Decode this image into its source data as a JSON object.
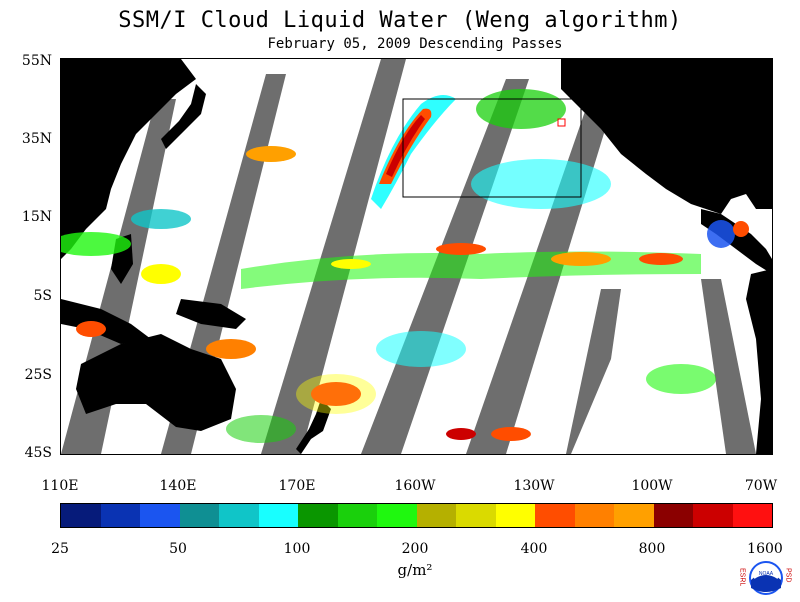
{
  "title": "SSM/I Cloud Liquid Water (Weng algorithm)",
  "subtitle": "February 05, 2009  Descending Passes",
  "lat_labels": [
    "55N",
    "35N",
    "15N",
    "5S",
    "25S",
    "45S"
  ],
  "lon_labels": [
    "110E",
    "140E",
    "170E",
    "160W",
    "130W",
    "100W",
    "70W"
  ],
  "colorbar": {
    "colors": [
      "#061b7a",
      "#0a33b3",
      "#1b55f0",
      "#0f8f93",
      "#10c5c8",
      "#18ffff",
      "#0a9600",
      "#1ad00c",
      "#1ff80f",
      "#b5b000",
      "#dada00",
      "#ffff00",
      "#ff4d00",
      "#ff8000",
      "#ffa000",
      "#8b0000",
      "#cc0000",
      "#ff1010"
    ],
    "labels": [
      "25",
      "50",
      "100",
      "200",
      "400",
      "800",
      "1600"
    ],
    "units": "g/m²"
  },
  "colors": {
    "land": "#000000",
    "no_data_swath": "#6e6e6e",
    "ocean_clear": "#ffffff"
  },
  "logo": {
    "left_text": "ESRL",
    "right_text": "PSD",
    "center": "NOAA"
  }
}
